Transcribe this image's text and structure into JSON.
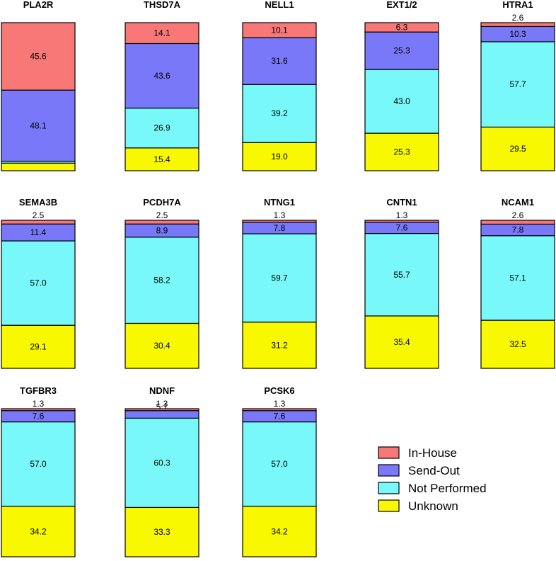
{
  "chart_data": {
    "type": "bar",
    "stacked": true,
    "ylim": [
      0,
      100
    ],
    "grid": false,
    "legend": {
      "placement": "bottom-right",
      "entries": [
        {
          "name": "In-House",
          "color": "#f87878"
        },
        {
          "name": "Send-Out",
          "color": "#7878f8"
        },
        {
          "name": "Not Performed",
          "color": "#78f8f8"
        },
        {
          "name": "Unknown",
          "color": "#f8f800"
        }
      ]
    },
    "panels": [
      {
        "title": "PLA2R",
        "values": {
          "In-House": 45.6,
          "Send-Out": 48.1,
          "Not Performed": 1.3,
          "Unknown": 5.1
        }
      },
      {
        "title": "THSD7A",
        "values": {
          "In-House": 14.1,
          "Send-Out": 43.6,
          "Not Performed": 26.9,
          "Unknown": 15.4
        }
      },
      {
        "title": "NELL1",
        "values": {
          "In-House": 10.1,
          "Send-Out": 31.6,
          "Not Performed": 39.2,
          "Unknown": 19.0
        }
      },
      {
        "title": "EXT1/2",
        "values": {
          "In-House": 6.3,
          "Send-Out": 25.3,
          "Not Performed": 43.0,
          "Unknown": 25.3
        }
      },
      {
        "title": "HTRA1",
        "values": {
          "In-House": 2.6,
          "Send-Out": 10.3,
          "Not Performed": 57.7,
          "Unknown": 29.5
        }
      },
      {
        "title": "SEMA3B",
        "values": {
          "In-House": 2.5,
          "Send-Out": 11.4,
          "Not Performed": 57.0,
          "Unknown": 29.1
        }
      },
      {
        "title": "PCDH7A",
        "values": {
          "In-House": 2.5,
          "Send-Out": 8.9,
          "Not Performed": 58.2,
          "Unknown": 30.4
        }
      },
      {
        "title": "NTNG1",
        "values": {
          "In-House": 1.3,
          "Send-Out": 7.8,
          "Not Performed": 59.7,
          "Unknown": 31.2
        }
      },
      {
        "title": "CNTN1",
        "values": {
          "In-House": 1.3,
          "Send-Out": 7.6,
          "Not Performed": 55.7,
          "Unknown": 35.4
        }
      },
      {
        "title": "NCAM1",
        "values": {
          "In-House": 2.6,
          "Send-Out": 7.8,
          "Not Performed": 57.1,
          "Unknown": 32.5
        }
      },
      {
        "title": "TGFBR3",
        "values": {
          "In-House": 1.3,
          "Send-Out": 7.6,
          "Not Performed": 57.0,
          "Unknown": 34.2
        }
      },
      {
        "title": "NDNF",
        "values": {
          "In-House": 1.3,
          "Send-Out": 5.1,
          "Not Performed": 60.3,
          "Unknown": 33.3
        }
      },
      {
        "title": "PCSK6",
        "values": {
          "In-House": 1.3,
          "Send-Out": 7.6,
          "Not Performed": 57.0,
          "Unknown": 34.2
        }
      }
    ]
  }
}
